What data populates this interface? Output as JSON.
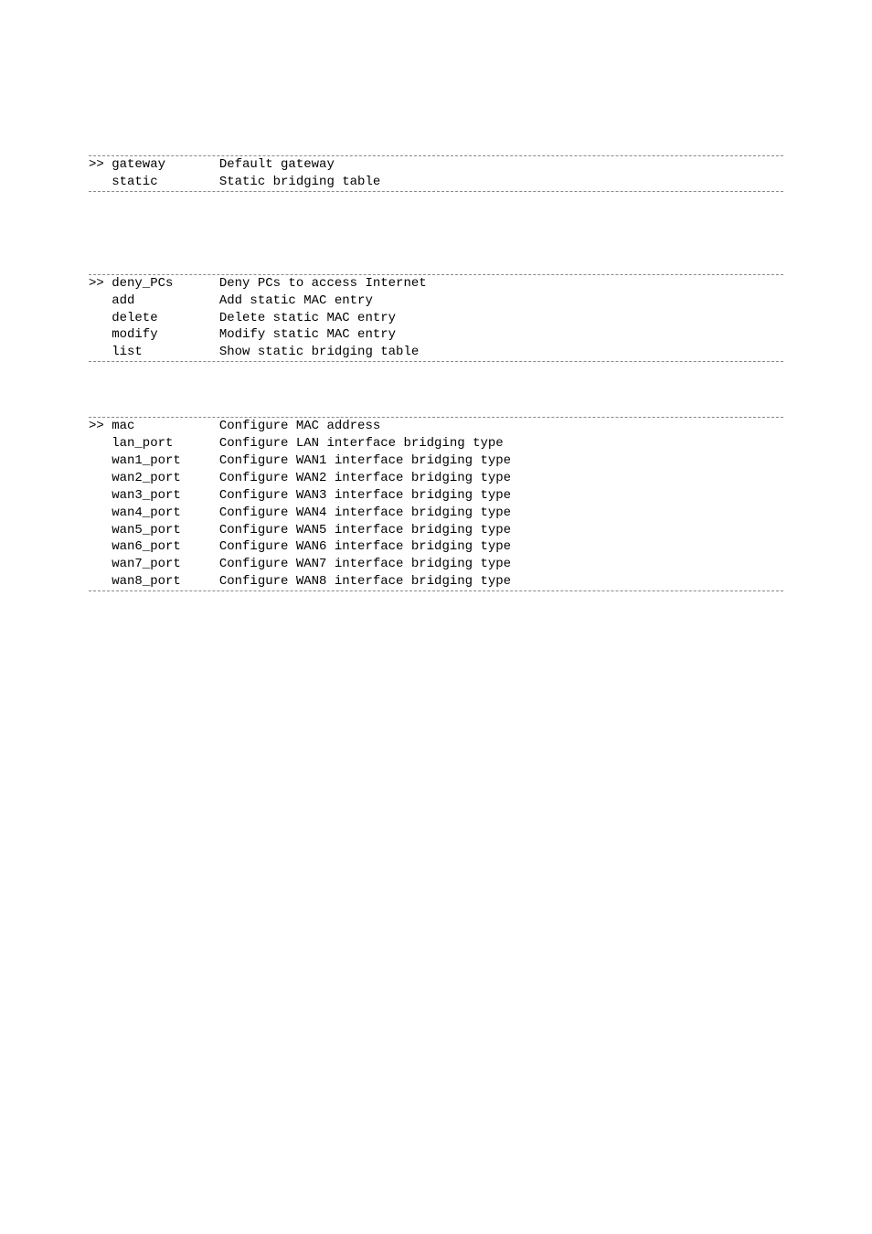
{
  "block1": {
    "rows": [
      {
        "cmd": ">> gateway",
        "desc": "Default gateway"
      },
      {
        "cmd": "   static",
        "desc": "Static bridging table"
      }
    ]
  },
  "block2": {
    "rows": [
      {
        "cmd": ">> deny_PCs",
        "desc": "Deny PCs to access Internet"
      },
      {
        "cmd": "   add",
        "desc": "Add static MAC entry"
      },
      {
        "cmd": "   delete",
        "desc": "Delete static MAC entry"
      },
      {
        "cmd": "   modify",
        "desc": "Modify static MAC entry"
      },
      {
        "cmd": "   list",
        "desc": "Show static bridging table"
      }
    ]
  },
  "block3": {
    "rows": [
      {
        "cmd": ">> mac",
        "desc": "Configure MAC address"
      },
      {
        "cmd": "   lan_port",
        "desc": "Configure LAN interface bridging type"
      },
      {
        "cmd": "   wan1_port",
        "desc": "Configure WAN1 interface bridging type"
      },
      {
        "cmd": "   wan2_port",
        "desc": "Configure WAN2 interface bridging type"
      },
      {
        "cmd": "   wan3_port",
        "desc": "Configure WAN3 interface bridging type"
      },
      {
        "cmd": "   wan4_port",
        "desc": "Configure WAN4 interface bridging type"
      },
      {
        "cmd": "   wan5_port",
        "desc": "Configure WAN5 interface bridging type"
      },
      {
        "cmd": "   wan6_port",
        "desc": "Configure WAN6 interface bridging type"
      },
      {
        "cmd": "   wan7_port",
        "desc": "Configure WAN7 interface bridging type"
      },
      {
        "cmd": "   wan8_port",
        "desc": "Configure WAN8 interface bridging type"
      }
    ]
  },
  "layout": {
    "cmd_col_width": 17
  }
}
